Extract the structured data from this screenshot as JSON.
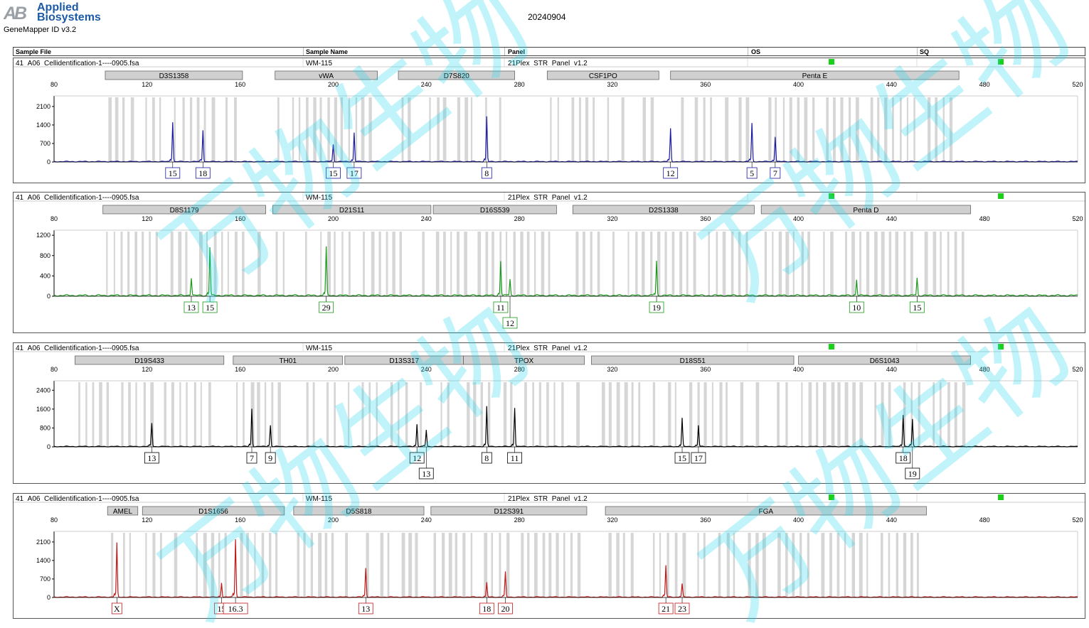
{
  "header": {
    "brand_line1": "Applied",
    "brand_line2": "Biosystems",
    "logo_mark": "AB",
    "app_name": "GeneMapper ID v3.2",
    "run_date": "20240904"
  },
  "table_header": {
    "sample_file": "Sample File",
    "sample_name": "Sample Name",
    "panel": "Panel",
    "os": "OS",
    "sq": "SQ"
  },
  "watermark_text": "万物生物",
  "chart_data": [
    {
      "type": "line",
      "color": "#1a1aa0",
      "sample_file": "41_A06_Cellidentification-1----0905.fsa",
      "sample_name": "WM-115",
      "panel": "21Plex_STR_Panel_v1.2",
      "os_status_color": "#1ad11a",
      "sq_status_color": "#1ad11a",
      "x_ticks": [
        80,
        120,
        160,
        200,
        240,
        280,
        320,
        360,
        400,
        440,
        480,
        520
      ],
      "y_ticks": [
        0,
        700,
        1400,
        2100
      ],
      "ylim": [
        0,
        2500
      ],
      "markers": [
        {
          "name": "D3S1358",
          "start": 102,
          "end": 161
        },
        {
          "name": "vWA",
          "start": 175,
          "end": 219
        },
        {
          "name": "D7S820",
          "start": 228,
          "end": 278
        },
        {
          "name": "CSF1PO",
          "start": 292,
          "end": 340
        },
        {
          "name": "Penta E",
          "start": 345,
          "end": 469
        }
      ],
      "peaks": [
        {
          "x": 131,
          "h": 1500,
          "label": "15"
        },
        {
          "x": 144,
          "h": 1200,
          "label": "18"
        },
        {
          "x": 200,
          "h": 650,
          "label": "15"
        },
        {
          "x": 209,
          "h": 1100,
          "label": "17"
        },
        {
          "x": 266,
          "h": 1700,
          "label": "8"
        },
        {
          "x": 345,
          "h": 1250,
          "label": "12"
        },
        {
          "x": 380,
          "h": 1450,
          "label": "5"
        },
        {
          "x": 390,
          "h": 950,
          "label": "7"
        }
      ]
    },
    {
      "type": "line",
      "color": "#1a9a1a",
      "sample_file": "41_A06_Cellidentification-1----0905.fsa",
      "sample_name": "WM-115",
      "panel": "21Plex_STR_Panel_v1.2",
      "os_status_color": "#1ad11a",
      "sq_status_color": "#1ad11a",
      "x_ticks": [
        80,
        120,
        160,
        200,
        240,
        280,
        320,
        360,
        400,
        440,
        480,
        520
      ],
      "y_ticks": [
        0,
        400,
        800,
        1200
      ],
      "ylim": [
        0,
        1300
      ],
      "markers": [
        {
          "name": "D8S1179",
          "start": 101,
          "end": 171
        },
        {
          "name": "D21S11",
          "start": 174,
          "end": 242
        },
        {
          "name": "D16S539",
          "start": 243,
          "end": 296
        },
        {
          "name": "D2S1338",
          "start": 303,
          "end": 381
        },
        {
          "name": "Penta D",
          "start": 384,
          "end": 474
        }
      ],
      "peaks": [
        {
          "x": 139,
          "h": 350,
          "label": "13"
        },
        {
          "x": 147,
          "h": 950,
          "label": "15"
        },
        {
          "x": 197,
          "h": 950,
          "label": "29"
        },
        {
          "x": 272,
          "h": 680,
          "label": "11"
        },
        {
          "x": 276,
          "h": 320,
          "label": "12"
        },
        {
          "x": 339,
          "h": 680,
          "label": "19"
        },
        {
          "x": 425,
          "h": 320,
          "label": "10"
        },
        {
          "x": 451,
          "h": 350,
          "label": "15"
        }
      ]
    },
    {
      "type": "line",
      "color": "#000000",
      "sample_file": "41_A06_Cellidentification-1----0905.fsa",
      "sample_name": "WM-115",
      "panel": "21Plex_STR_Panel_v1.2",
      "os_status_color": "#1ad11a",
      "sq_status_color": "#1ad11a",
      "x_ticks": [
        80,
        120,
        160,
        200,
        240,
        280,
        320,
        360,
        400,
        440,
        480,
        520
      ],
      "y_ticks": [
        0,
        800,
        1600,
        2400
      ],
      "ylim": [
        0,
        2800
      ],
      "markers": [
        {
          "name": "D19S433",
          "start": 89,
          "end": 153
        },
        {
          "name": "TH01",
          "start": 157,
          "end": 204
        },
        {
          "name": "D13S317",
          "start": 205,
          "end": 256
        },
        {
          "name": "TPOX",
          "start": 256,
          "end": 308
        },
        {
          "name": "D18S51",
          "start": 311,
          "end": 398
        },
        {
          "name": "D6S1043",
          "start": 400,
          "end": 474
        }
      ],
      "peaks": [
        {
          "x": 122,
          "h": 1000,
          "label": "13"
        },
        {
          "x": 165,
          "h": 1600,
          "label": "7"
        },
        {
          "x": 173,
          "h": 900,
          "label": "9"
        },
        {
          "x": 236,
          "h": 950,
          "label": "12"
        },
        {
          "x": 240,
          "h": 700,
          "label": "13"
        },
        {
          "x": 266,
          "h": 1700,
          "label": "8"
        },
        {
          "x": 278,
          "h": 1650,
          "label": "11"
        },
        {
          "x": 350,
          "h": 1200,
          "label": "15"
        },
        {
          "x": 357,
          "h": 900,
          "label": "17"
        },
        {
          "x": 445,
          "h": 1350,
          "label": "18"
        },
        {
          "x": 449,
          "h": 1150,
          "label": "19"
        }
      ]
    },
    {
      "type": "line",
      "color": "#c01818",
      "sample_file": "41_A06_Cellidentification-1----0905.fsa",
      "sample_name": "WM-115",
      "panel": "21Plex_STR_Panel_v1.2",
      "os_status_color": "#1ad11a",
      "sq_status_color": "#1ad11a",
      "x_ticks": [
        80,
        120,
        160,
        200,
        240,
        280,
        320,
        360,
        400,
        440,
        480,
        520
      ],
      "y_ticks": [
        0,
        700,
        1400,
        2100
      ],
      "ylim": [
        0,
        2500
      ],
      "markers": [
        {
          "name": "AMEL",
          "start": 103,
          "end": 116
        },
        {
          "name": "D1S1656",
          "start": 118,
          "end": 179
        },
        {
          "name": "D5S818",
          "start": 183,
          "end": 239
        },
        {
          "name": "D12S391",
          "start": 242,
          "end": 309
        },
        {
          "name": "FGA",
          "start": 317,
          "end": 455
        }
      ],
      "peaks": [
        {
          "x": 107,
          "h": 2050,
          "label": "X"
        },
        {
          "x": 152,
          "h": 550,
          "label": "15"
        },
        {
          "x": 158,
          "h": 2200,
          "label": "16.3"
        },
        {
          "x": 214,
          "h": 1100,
          "label": "13"
        },
        {
          "x": 266,
          "h": 550,
          "label": "18"
        },
        {
          "x": 274,
          "h": 950,
          "label": "20"
        },
        {
          "x": 343,
          "h": 1200,
          "label": "21"
        },
        {
          "x": 350,
          "h": 500,
          "label": "23"
        }
      ]
    }
  ]
}
